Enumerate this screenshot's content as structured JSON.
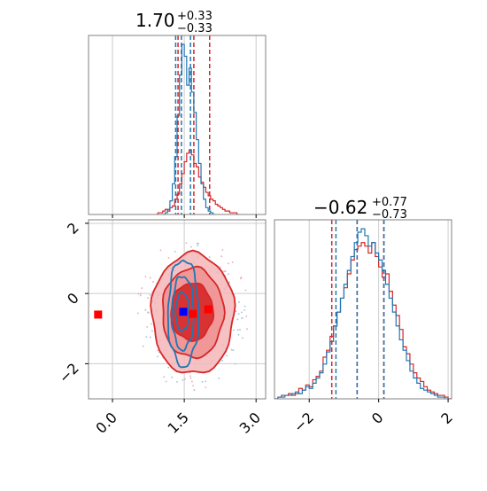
{
  "colors": {
    "red": "#d62728",
    "blue": "#1f77b4",
    "marker_red": "#ff0000",
    "marker_blue": "#0000ff",
    "grid": "#cccccc",
    "frame": "#808080",
    "fill_light": "#f4b6b8",
    "fill_mid": "#ef8f91",
    "fill_dark": "#d62728"
  },
  "chart_data": [
    {
      "type": "area",
      "panel": "marginal-param-1",
      "title_value": "1.70",
      "title_plus": "+0.33",
      "title_minus": "−0.33",
      "xlim": [
        -0.5,
        3.2
      ],
      "grid": true,
      "bin_width": 0.05,
      "series": [
        {
          "name": "",
          "color": "red",
          "x_start": 0.9,
          "counts": [
            0,
            1,
            1,
            2,
            3,
            2,
            4,
            5,
            9,
            12,
            18,
            24,
            31,
            36,
            38,
            35,
            30,
            28,
            22,
            19,
            16,
            13,
            11,
            9,
            8,
            6,
            5,
            4,
            3,
            2,
            2,
            1,
            1,
            1,
            0
          ],
          "quantiles": [
            1.37,
            1.7,
            2.03
          ]
        },
        {
          "name": "",
          "color": "blue",
          "x_start": 1.05,
          "counts": [
            0,
            1,
            3,
            8,
            18,
            34,
            58,
            82,
            100,
            93,
            76,
            86,
            72,
            60,
            44,
            30,
            18,
            9,
            4,
            2,
            1,
            0
          ],
          "quantiles": [
            1.32,
            1.44,
            1.63
          ]
        }
      ]
    },
    {
      "type": "scatter",
      "panel": "joint-2d",
      "xlim": [
        -0.5,
        3.2
      ],
      "ylim": [
        -3.0,
        2.1
      ],
      "xticks": [
        "0.0",
        "1.5",
        "3.0"
      ],
      "xtick_values": [
        0.0,
        1.5,
        3.0
      ],
      "yticks": [
        "−2",
        "0",
        "2"
      ],
      "ytick_values": [
        -2,
        0,
        2
      ],
      "grid": true,
      "red_levels": [
        {
          "level": "outer",
          "cx": 1.68,
          "cy": -0.58,
          "rx": 0.86,
          "ry": 1.72
        },
        {
          "level": "middle",
          "cx": 1.68,
          "cy": -0.55,
          "rx": 0.64,
          "ry": 1.28
        },
        {
          "level": "inner",
          "cx": 1.66,
          "cy": -0.52,
          "rx": 0.44,
          "ry": 0.82
        }
      ],
      "blue_levels": [
        {
          "level": "outer",
          "cx": 1.48,
          "cy": -0.55,
          "rx": 0.32,
          "ry": 1.52
        },
        {
          "level": "middle",
          "cx": 1.47,
          "cy": -0.55,
          "rx": 0.23,
          "ry": 1.05
        },
        {
          "level": "inner",
          "cx": 1.46,
          "cy": -0.52,
          "rx": 0.14,
          "ry": 0.55
        }
      ],
      "markers": [
        {
          "x": -0.3,
          "y": -0.6,
          "color": "marker_red"
        },
        {
          "x": 1.48,
          "y": -0.52,
          "color": "marker_blue"
        },
        {
          "x": 1.68,
          "y": -0.58,
          "color": "marker_red"
        },
        {
          "x": 2.0,
          "y": -0.45,
          "color": "marker_red"
        }
      ]
    },
    {
      "type": "area",
      "panel": "marginal-param-2",
      "title_value": "−0.62",
      "title_plus": "+0.77",
      "title_minus": "−0.73",
      "xlim": [
        -3.0,
        2.1
      ],
      "xticks": [
        "−2",
        "0",
        "2"
      ],
      "xtick_values": [
        -2,
        0,
        2
      ],
      "grid": true,
      "bin_width": 0.1,
      "series": [
        {
          "name": "",
          "color": "red",
          "x_start": -3.0,
          "counts": [
            0,
            1,
            2,
            2,
            3,
            2,
            3,
            6,
            5,
            8,
            7,
            11,
            13,
            16,
            24,
            28,
            36,
            42,
            50,
            58,
            64,
            72,
            80,
            86,
            88,
            90,
            88,
            84,
            90,
            82,
            76,
            70,
            72,
            62,
            54,
            48,
            40,
            30,
            26,
            20,
            15,
            12,
            10,
            7,
            5,
            4,
            3,
            2,
            2,
            1,
            0
          ],
          "quantiles": [
            -1.35,
            -0.62,
            0.15
          ]
        },
        {
          "name": "",
          "color": "blue",
          "x_start": -3.0,
          "counts": [
            0,
            1,
            1,
            2,
            2,
            3,
            4,
            3,
            5,
            7,
            6,
            9,
            12,
            15,
            20,
            27,
            33,
            42,
            50,
            58,
            66,
            74,
            82,
            90,
            96,
            98,
            94,
            88,
            90,
            84,
            80,
            74,
            66,
            58,
            50,
            42,
            34,
            28,
            22,
            16,
            12,
            9,
            6,
            5,
            4,
            3,
            2,
            1,
            1,
            0,
            0
          ],
          "quantiles": [
            -1.23,
            -0.62,
            0.15
          ]
        }
      ]
    }
  ]
}
